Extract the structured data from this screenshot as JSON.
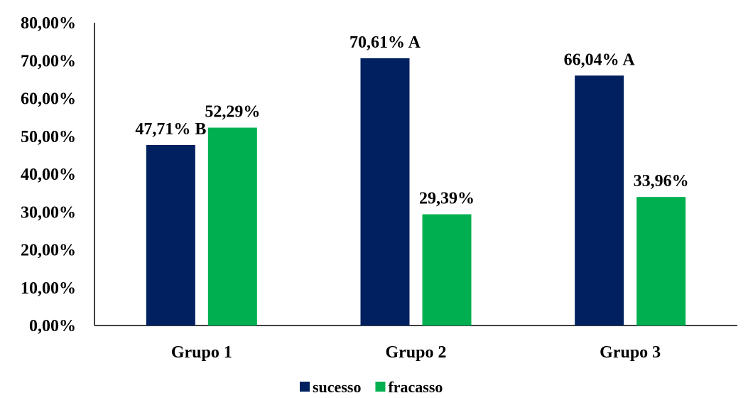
{
  "chart_data": {
    "type": "bar",
    "title": "",
    "xlabel": "",
    "ylabel": "",
    "categories": [
      "Grupo 1",
      "Grupo 2",
      "Grupo 3"
    ],
    "series": [
      {
        "name": "sucesso",
        "color": "#002060",
        "values": [
          47.71,
          70.61,
          66.04
        ],
        "labels": [
          "47,71% B",
          "70,61% A",
          "66,04% A"
        ]
      },
      {
        "name": "fracasso",
        "color": "#00B050",
        "values": [
          52.29,
          29.39,
          33.96
        ],
        "labels": [
          "52,29%",
          "29,39%",
          "33,96%"
        ]
      }
    ],
    "ylim": [
      0,
      80
    ],
    "yticks": [
      0,
      10,
      20,
      30,
      40,
      50,
      60,
      70,
      80
    ],
    "ytick_labels": [
      "0,00%",
      "10,00%",
      "20,00%",
      "30,00%",
      "40,00%",
      "50,00%",
      "60,00%",
      "70,00%",
      "80,00%"
    ],
    "grid": false,
    "legend_position": "bottom-center"
  }
}
